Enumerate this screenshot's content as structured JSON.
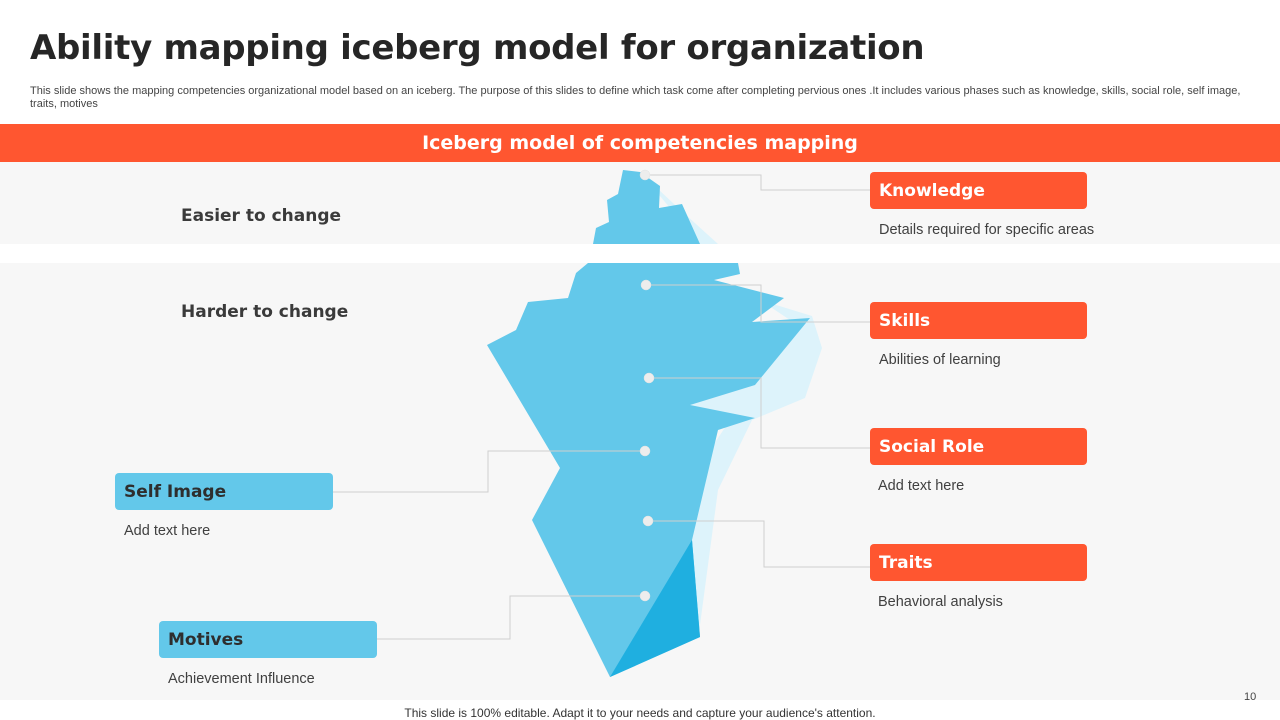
{
  "slide": {
    "title": "Ability mapping iceberg model for organization",
    "subtitle": "This slide shows the mapping competencies organizational model based on an iceberg. The purpose of this slides to define which task come after completing pervious ones .It includes various phases such as knowledge, skills, social role, self image, traits, motives",
    "banner": "Iceberg model of competencies mapping",
    "footer": "This slide is 100% editable. Adapt it to your needs and capture your audience's attention.",
    "page_number": "10"
  },
  "zones": {
    "easier": "Easier to change",
    "harder": "Harder to change"
  },
  "items": [
    {
      "key": "knowledge",
      "label": "Knowledge",
      "desc": "Details required for specific areas"
    },
    {
      "key": "skills",
      "label": "Skills",
      "desc": "Abilities of learning"
    },
    {
      "key": "social_role",
      "label": "Social Role",
      "desc": "Add text here"
    },
    {
      "key": "self_image",
      "label": "Self Image",
      "desc": "Add text here"
    },
    {
      "key": "traits",
      "label": "Traits",
      "desc": "Behavioral analysis"
    },
    {
      "key": "motives",
      "label": "Motives",
      "desc": "Achievement  Influence"
    }
  ],
  "colors": {
    "accent": "#FF5630",
    "ice": "#63C8EA",
    "ice_light": "#DDF3FB",
    "ice_dark": "#1FAFE0",
    "zone_bg": "#F7F7F7"
  }
}
